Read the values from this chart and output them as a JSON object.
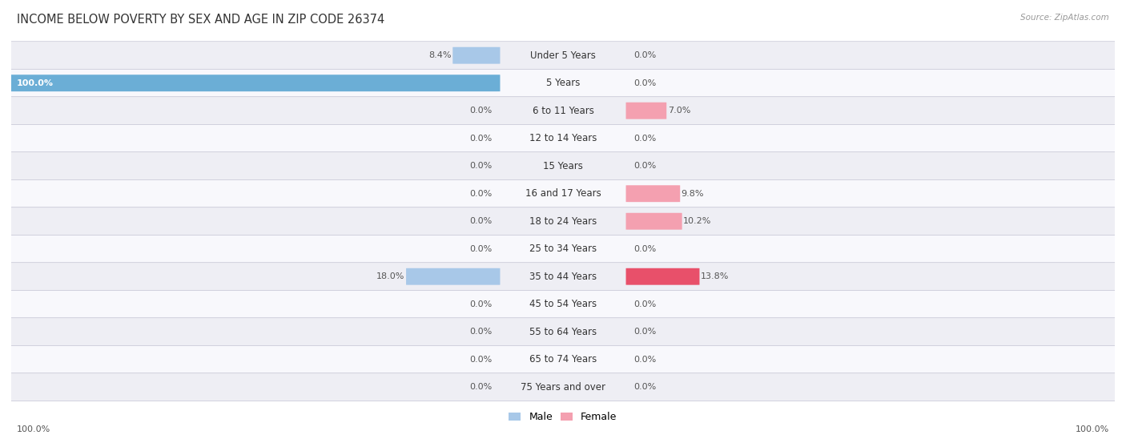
{
  "title": "INCOME BELOW POVERTY BY SEX AND AGE IN ZIP CODE 26374",
  "source": "Source: ZipAtlas.com",
  "categories": [
    "Under 5 Years",
    "5 Years",
    "6 to 11 Years",
    "12 to 14 Years",
    "15 Years",
    "16 and 17 Years",
    "18 to 24 Years",
    "25 to 34 Years",
    "35 to 44 Years",
    "45 to 54 Years",
    "55 to 64 Years",
    "65 to 74 Years",
    "75 Years and over"
  ],
  "male_values": [
    8.4,
    100.0,
    0.0,
    0.0,
    0.0,
    0.0,
    0.0,
    0.0,
    18.0,
    0.0,
    0.0,
    0.0,
    0.0
  ],
  "female_values": [
    0.0,
    0.0,
    7.0,
    0.0,
    0.0,
    9.8,
    10.2,
    0.0,
    13.8,
    0.0,
    0.0,
    0.0,
    0.0
  ],
  "male_color_normal": "#A8C8E8",
  "male_color_bright": "#6BAED6",
  "female_color_normal": "#F4A0B0",
  "female_color_bright": "#E8506A",
  "male_label": "Male",
  "female_label": "Female",
  "row_bg_color_odd": "#EEEEF4",
  "row_bg_color_even": "#F8F8FC",
  "max_value": 100.0,
  "title_fontsize": 10.5,
  "label_fontsize": 8.5,
  "value_fontsize": 8.0,
  "background_color": "#FFFFFF"
}
